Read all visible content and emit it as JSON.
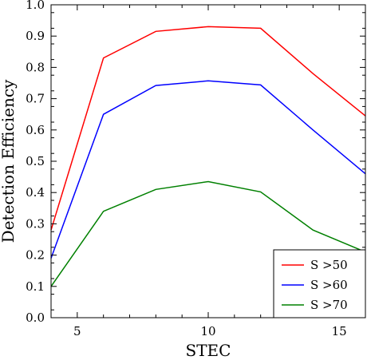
{
  "chart_data": {
    "type": "line",
    "xlabel": "STEC",
    "ylabel": "Detection Efficiency",
    "xlim": [
      4,
      16
    ],
    "ylim": [
      0.0,
      1.0
    ],
    "xticks": [
      5,
      10,
      15
    ],
    "yticks": [
      "0.0",
      "0.1",
      "0.2",
      "0.3",
      "0.4",
      "0.5",
      "0.6",
      "0.7",
      "0.8",
      "0.9",
      "1.0"
    ],
    "x": [
      4,
      6,
      8,
      10,
      12,
      14,
      16
    ],
    "series": [
      {
        "name": "S >50",
        "color": "#ff0000",
        "values": [
          0.28,
          0.83,
          0.915,
          0.93,
          0.925,
          0.78,
          0.645
        ]
      },
      {
        "name": "S >60",
        "color": "#0000ff",
        "values": [
          0.19,
          0.65,
          0.742,
          0.757,
          0.744,
          0.6,
          0.46
        ]
      },
      {
        "name": "S >70",
        "color": "#008000",
        "values": [
          0.1,
          0.34,
          0.41,
          0.435,
          0.402,
          0.28,
          0.21
        ]
      }
    ],
    "legend_position": "bottom-right",
    "grid": false
  }
}
